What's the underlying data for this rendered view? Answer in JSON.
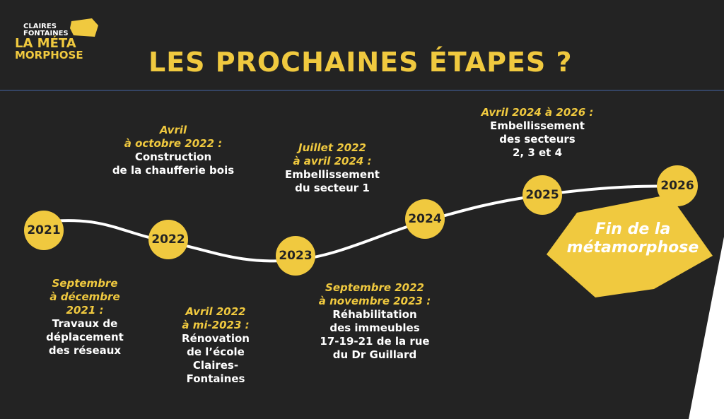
{
  "logo": {
    "line1": "CLAIRES",
    "line2": "FONTAINES",
    "line3": "LA MÉTA",
    "line4": "MORPHOSE"
  },
  "title": "LES PROCHAINES ÉTAPES ?",
  "colors": {
    "background": "#232323",
    "accent": "#f0c93f",
    "divider": "#3a4f7a"
  },
  "years": [
    "2021",
    "2022",
    "2023",
    "2024",
    "2025",
    "2026"
  ],
  "final": {
    "line1": "Fin de la",
    "line2": "métamorphose"
  },
  "steps": [
    {
      "date": [
        "Septembre",
        "à décembre",
        "2021 :"
      ],
      "text": [
        "Travaux de",
        "déplacement",
        "des réseaux"
      ]
    },
    {
      "date": [
        "Avril",
        "à octobre 2022 :"
      ],
      "text": [
        "Construction",
        "de la chaufferie bois"
      ]
    },
    {
      "date": [
        "Avril 2022",
        "à mi-2023 :"
      ],
      "text": [
        "Rénovation",
        "de l’école",
        "Claires-",
        "Fontaines"
      ]
    },
    {
      "date": [
        "Juillet 2022",
        "à avril 2024 :"
      ],
      "text": [
        "Embellissement",
        "du secteur 1"
      ]
    },
    {
      "date": [
        "Septembre 2022",
        "à novembre 2023 :"
      ],
      "text": [
        "Réhabilitation",
        "des immeubles",
        "17-19-21 de la rue",
        "du Dr Guillard"
      ]
    },
    {
      "date": [
        "Avril 2024 à 2026 :"
      ],
      "text": [
        "Embellissement",
        "des secteurs",
        "2, 3 et 4"
      ]
    }
  ]
}
